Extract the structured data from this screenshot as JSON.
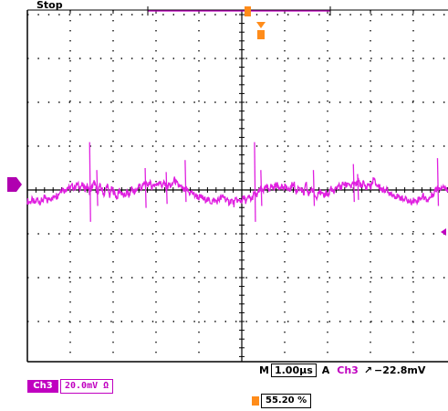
{
  "status": {
    "run_state": "Stop"
  },
  "timebase": {
    "prefix": "M",
    "value": "1.00μs"
  },
  "trigger": {
    "mode_label": "A",
    "source": "Ch3",
    "edge_symbol": "↗",
    "level": "−22.8mV",
    "position": "55.20 %",
    "marker_label": "U"
  },
  "channel": {
    "badge": "Ch3",
    "scale": "20.0mV Ω",
    "ground_marker": "3"
  },
  "colors": {
    "channel3": "#e020e0",
    "trigger": "#ff8c1a",
    "grid": "#000000",
    "background": "#ffffff"
  },
  "waveform": {
    "description_free": true,
    "periods_visible": 2.1,
    "samples": [
      -0.55,
      -0.62,
      -0.5,
      -0.7,
      -0.45,
      -0.6,
      -0.52,
      -0.4,
      -0.58,
      -0.35,
      -0.5,
      -0.2,
      -0.3,
      -0.1,
      0.1,
      -0.05,
      0.15,
      0.05,
      0.2,
      0.1,
      0.3,
      0.12,
      0.25,
      0.05,
      0.2,
      -0.1,
      0.15,
      0.4,
      -0.2,
      0.2,
      0.0,
      -0.25,
      0.3,
      -0.3,
      0.1,
      -0.15,
      -0.4,
      0.0,
      -0.2,
      -0.35,
      -0.1,
      -0.3,
      0.15,
      -0.2,
      0.05,
      0.25,
      0.1,
      0.35,
      0.2,
      0.4,
      0.15,
      0.3,
      0.25,
      0.45,
      0.2,
      0.35,
      0.1,
      0.3,
      0.15,
      0.55,
      0.3,
      0.2,
      0.1,
      -0.05,
      0.05,
      -0.15,
      -0.1,
      -0.25,
      -0.3,
      -0.4,
      -0.35,
      -0.5,
      -0.45,
      -0.55,
      -0.6,
      -0.5,
      -0.58,
      -0.48,
      -0.4,
      -0.3,
      -0.55,
      -0.62,
      -0.5,
      -0.7,
      -0.45,
      -0.6,
      -0.52,
      -0.4,
      -0.58,
      -0.35,
      -0.5,
      -0.2,
      -0.3,
      -0.1,
      0.1,
      -0.05,
      0.15,
      0.05,
      0.2,
      0.1,
      0.3,
      0.12,
      0.25,
      0.05,
      0.2,
      -0.1,
      0.15,
      0.4,
      -0.2,
      0.2,
      0.0,
      -0.25,
      0.3,
      -0.3,
      0.1,
      -0.15,
      -0.4,
      0.0,
      -0.2,
      -0.35,
      -0.1,
      -0.3,
      0.15,
      -0.2,
      0.05,
      0.25,
      0.1,
      0.35,
      0.2,
      0.4,
      0.15,
      0.3,
      0.25,
      0.45,
      0.2,
      0.35,
      0.1,
      0.3,
      0.15,
      0.55,
      0.3,
      0.2,
      0.1,
      -0.05,
      0.05,
      -0.15,
      -0.1,
      -0.25,
      -0.3,
      -0.4,
      -0.35,
      -0.5,
      -0.45,
      -0.55,
      -0.6,
      -0.5,
      -0.58,
      -0.48,
      -0.4,
      -0.3,
      -0.45,
      -0.5,
      -0.35,
      -0.2,
      0.0,
      0.1,
      0.15,
      0.2,
      0.05,
      0.1
    ],
    "spikes": [
      {
        "at": 0.148,
        "up": 2.4,
        "down": -1.6
      },
      {
        "at": 0.165,
        "up": 1.0,
        "down": -0.8
      },
      {
        "at": 0.28,
        "up": 1.1,
        "down": -0.9
      },
      {
        "at": 0.33,
        "up": 0.9,
        "down": -0.7
      },
      {
        "at": 0.375,
        "up": 1.5,
        "down": -0.6
      },
      {
        "at": 0.54,
        "up": 2.4,
        "down": -1.6
      },
      {
        "at": 0.555,
        "up": 1.0,
        "down": -0.8
      },
      {
        "at": 0.68,
        "up": 1.0,
        "down": -0.8
      },
      {
        "at": 0.775,
        "up": 1.3,
        "down": -0.6
      },
      {
        "at": 0.785,
        "up": 0.8,
        "down": -0.5
      },
      {
        "at": 0.975,
        "up": 1.6,
        "down": -0.8
      }
    ]
  }
}
